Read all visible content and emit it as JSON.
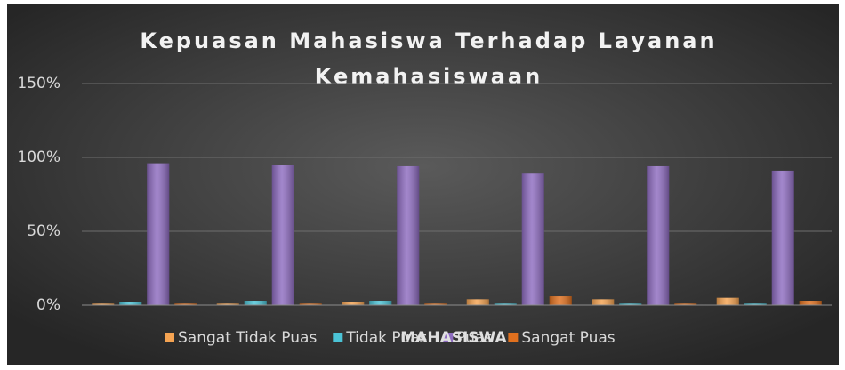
{
  "chart_data": {
    "type": "bar",
    "title": "Kepuasan Mahasiswa Terhadap Layanan",
    "subtitle": "Kemahasiswaan",
    "x_label": "MAHASISWA",
    "categories": [
      null,
      null,
      null,
      null,
      null,
      null
    ],
    "series": [
      {
        "name": "Sangat Tidak Puas",
        "color": "#f4a352",
        "values": [
          1,
          1,
          2,
          4,
          4,
          5
        ]
      },
      {
        "name": "Tidak Puas",
        "color": "#4bc3d6",
        "values": [
          2,
          3,
          3,
          1,
          1,
          1
        ]
      },
      {
        "name": "Puas",
        "color": "#8e6cc0",
        "values": [
          96,
          95,
          94,
          89,
          94,
          91
        ]
      },
      {
        "name": "Sangat Puas",
        "color": "#e0701e",
        "values": [
          1,
          1,
          1,
          6,
          1,
          3
        ]
      }
    ],
    "ylim": [
      0,
      150
    ],
    "yticks": [
      {
        "value": 0,
        "label": "0%"
      },
      {
        "value": 50,
        "label": "50%"
      },
      {
        "value": 100,
        "label": "100%"
      },
      {
        "value": 150,
        "label": "150%"
      }
    ],
    "grid": true,
    "legend": "bottom"
  }
}
